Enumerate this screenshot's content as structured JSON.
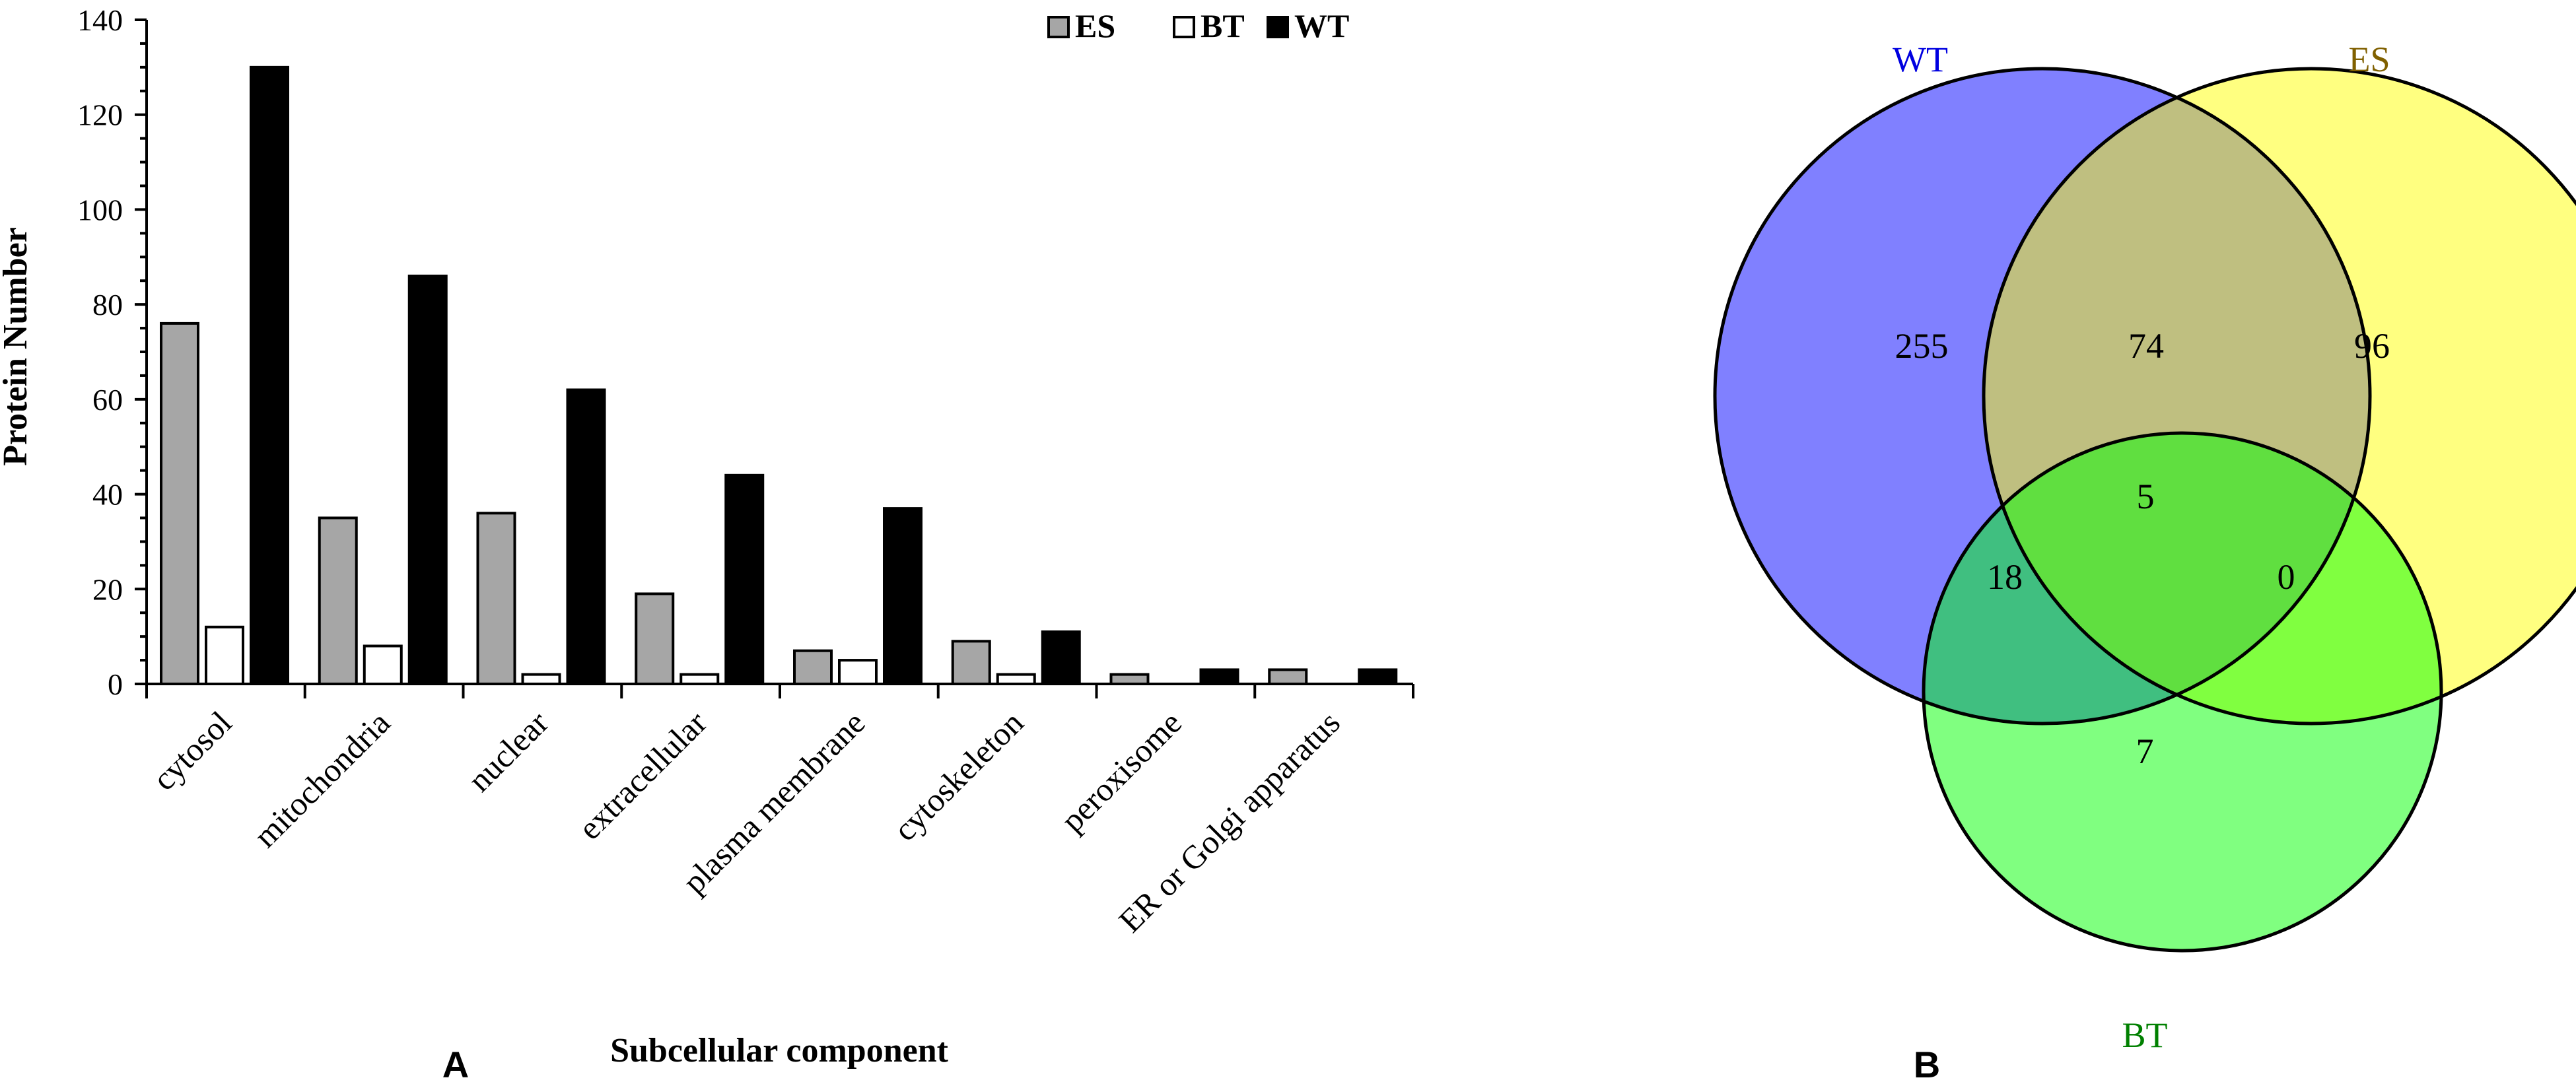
{
  "chart_data": [
    {
      "type": "bar",
      "panel_label": "A",
      "title": "",
      "xlabel": "Subcellular component",
      "ylabel": "Protein Number",
      "ylim": [
        0,
        140
      ],
      "yticks": [
        0,
        20,
        40,
        60,
        80,
        100,
        120,
        140
      ],
      "ytick_labels": [
        "0",
        "20",
        "40",
        "60",
        "80",
        "100",
        "120",
        "140"
      ],
      "categories": [
        "cytosol",
        "mitochondria",
        "nuclear",
        "extracellular",
        "plasma membrane",
        "cytoskeleton",
        "peroxisome",
        "ER or Golgi apparatus"
      ],
      "series": [
        {
          "name": "ES",
          "color": "#a6a6a6",
          "values": [
            76,
            35,
            36,
            19,
            7,
            9,
            2,
            3
          ]
        },
        {
          "name": "BT",
          "color": "#ffffff",
          "values": [
            12,
            8,
            2,
            2,
            5,
            2,
            0,
            0
          ]
        },
        {
          "name": "WT",
          "color": "#000000",
          "values": [
            130,
            86,
            62,
            44,
            37,
            11,
            3,
            3
          ]
        }
      ],
      "legend": "top-right",
      "grid": false
    },
    {
      "type": "venn",
      "panel_label": "B",
      "sets": [
        {
          "name": "WT",
          "color": "#8080ff",
          "label_color": "#0000e0"
        },
        {
          "name": "ES",
          "color": "#ffff80",
          "label_color": "#806000"
        },
        {
          "name": "BT",
          "color": "#80ff80",
          "label_color": "#008000"
        }
      ],
      "regions": [
        {
          "sets": [
            "WT"
          ],
          "value": "255",
          "color": "#8080ff"
        },
        {
          "sets": [
            "ES"
          ],
          "value": "96",
          "color": "#ffff80"
        },
        {
          "sets": [
            "BT"
          ],
          "value": "7",
          "color": "#80ff80"
        },
        {
          "sets": [
            "WT",
            "ES"
          ],
          "value": "74",
          "color": "#bfbf80"
        },
        {
          "sets": [
            "WT",
            "BT"
          ],
          "value": "18",
          "color": "#40bf80"
        },
        {
          "sets": [
            "ES",
            "BT"
          ],
          "value": "0",
          "color": "#80ff40"
        },
        {
          "sets": [
            "WT",
            "ES",
            "BT"
          ],
          "value": "5",
          "color": "#60df40"
        }
      ]
    }
  ]
}
